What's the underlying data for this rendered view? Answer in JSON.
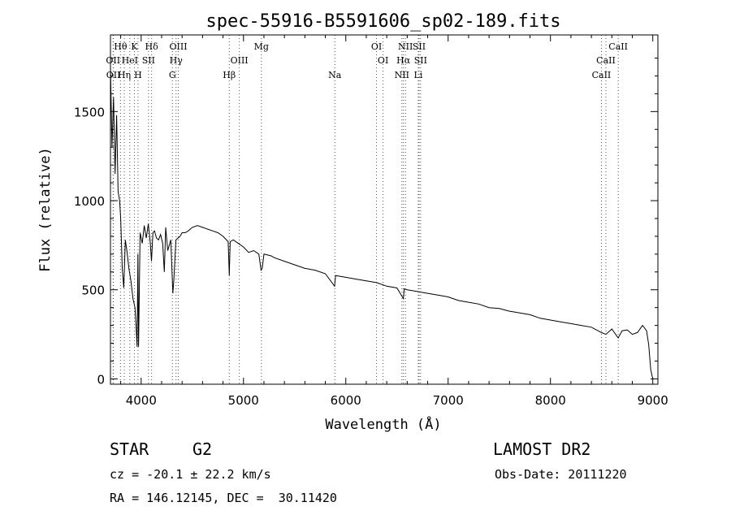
{
  "chart_data": {
    "type": "line",
    "title": "spec-55916-B5591606_sp02-189.fits",
    "xlabel": "Wavelength (Å)",
    "ylabel": "Flux (relative)",
    "xlim": [
      3700,
      9050
    ],
    "ylim": [
      -30,
      1930
    ],
    "xticks": [
      4000,
      5000,
      6000,
      7000,
      8000,
      9000
    ],
    "yticks": [
      0,
      500,
      1000,
      1500
    ],
    "grid": false,
    "series": [
      {
        "x": [
          3700,
          3715,
          3730,
          3745,
          3760,
          3775,
          3790,
          3800,
          3815,
          3830,
          3845,
          3860,
          3880,
          3900,
          3920,
          3940,
          3950,
          3960,
          3968,
          3975,
          3990,
          4010,
          4030,
          4050,
          4070,
          4090,
          4101,
          4115,
          4130,
          4150,
          4170,
          4190,
          4210,
          4226,
          4240,
          4260,
          4290,
          4310,
          4320,
          4340,
          4360,
          4380,
          4400,
          4430,
          4460,
          4500,
          4550,
          4600,
          4650,
          4700,
          4750,
          4800,
          4850,
          4861,
          4870,
          4900,
          4950,
          5000,
          5050,
          5100,
          5150,
          5172,
          5183,
          5200,
          5270,
          5300,
          5400,
          5500,
          5600,
          5700,
          5800,
          5890,
          5900,
          6000,
          6100,
          6200,
          6300,
          6400,
          6500,
          6563,
          6570,
          6600,
          6700,
          6800,
          6900,
          7000,
          7100,
          7200,
          7300,
          7400,
          7500,
          7600,
          7700,
          7800,
          7900,
          8000,
          8100,
          8200,
          8300,
          8400,
          8498,
          8542,
          8600,
          8662,
          8700,
          8750,
          8800,
          8850,
          8900,
          8940,
          8960,
          8980,
          9000
        ],
        "y": [
          1750,
          1300,
          1580,
          1150,
          1480,
          1050,
          1000,
          900,
          620,
          510,
          780,
          720,
          620,
          550,
          450,
          400,
          300,
          180,
          700,
          180,
          820,
          760,
          860,
          790,
          870,
          760,
          660,
          820,
          830,
          790,
          780,
          810,
          760,
          600,
          850,
          720,
          780,
          480,
          560,
          780,
          790,
          800,
          820,
          820,
          830,
          850,
          860,
          850,
          840,
          830,
          820,
          800,
          770,
          580,
          770,
          780,
          760,
          740,
          710,
          720,
          700,
          610,
          620,
          700,
          690,
          680,
          660,
          640,
          620,
          610,
          590,
          520,
          580,
          570,
          560,
          550,
          540,
          520,
          510,
          450,
          505,
          500,
          490,
          480,
          470,
          460,
          440,
          430,
          420,
          400,
          395,
          380,
          370,
          360,
          340,
          330,
          320,
          310,
          300,
          290,
          260,
          250,
          280,
          230,
          270,
          275,
          250,
          260,
          300,
          270,
          190,
          50,
          0
        ]
      }
    ],
    "lines": [
      {
        "name": "Hθ",
        "wl": 3798,
        "row": 1
      },
      {
        "name": "K",
        "wl": 3934,
        "row": 1
      },
      {
        "name": "Hδ",
        "wl": 4102,
        "row": 1
      },
      {
        "name": "OIII",
        "wl": 4363,
        "row": 1
      },
      {
        "name": "Mg",
        "wl": 5175,
        "row": 1
      },
      {
        "name": "OI",
        "wl": 6300,
        "row": 1
      },
      {
        "name": "NII",
        "wl": 6583,
        "row": 1
      },
      {
        "name": "SII",
        "wl": 6716,
        "row": 1
      },
      {
        "name": "CaII",
        "wl": 8662,
        "row": 1
      },
      {
        "name": "OII",
        "wl": 3726,
        "row": 2
      },
      {
        "name": "HeI",
        "wl": 3889,
        "row": 2
      },
      {
        "name": "SII",
        "wl": 4072,
        "row": 2
      },
      {
        "name": "Hγ",
        "wl": 4341,
        "row": 2
      },
      {
        "name": "OIII",
        "wl": 4959,
        "row": 2
      },
      {
        "name": "OI",
        "wl": 6364,
        "row": 2
      },
      {
        "name": "Hα",
        "wl": 6563,
        "row": 2
      },
      {
        "name": "SII",
        "wl": 6731,
        "row": 2
      },
      {
        "name": "CaII",
        "wl": 8542,
        "row": 2
      },
      {
        "name": "OII",
        "wl": 3729,
        "row": 3
      },
      {
        "name": "Hη",
        "wl": 3835,
        "row": 3
      },
      {
        "name": "H",
        "wl": 3969,
        "row": 3
      },
      {
        "name": "G",
        "wl": 4305,
        "row": 3
      },
      {
        "name": "Hβ",
        "wl": 4861,
        "row": 3
      },
      {
        "name": "Na",
        "wl": 5893,
        "row": 3
      },
      {
        "name": "NII",
        "wl": 6548,
        "row": 3
      },
      {
        "name": "Li",
        "wl": 6708,
        "row": 3
      },
      {
        "name": "CaII",
        "wl": 8498,
        "row": 3
      }
    ]
  },
  "info": {
    "class": "STAR",
    "subclass": "G2",
    "survey": "LAMOST DR2",
    "cz": "cz = -20.1 ± 22.2 km/s",
    "obs_date": "Obs-Date: 20111220",
    "coords": "RA = 146.12145, DEC =  30.11420"
  },
  "colors": {
    "line": "#000000",
    "guide": "#c8201e",
    "background": "#ffffff"
  }
}
